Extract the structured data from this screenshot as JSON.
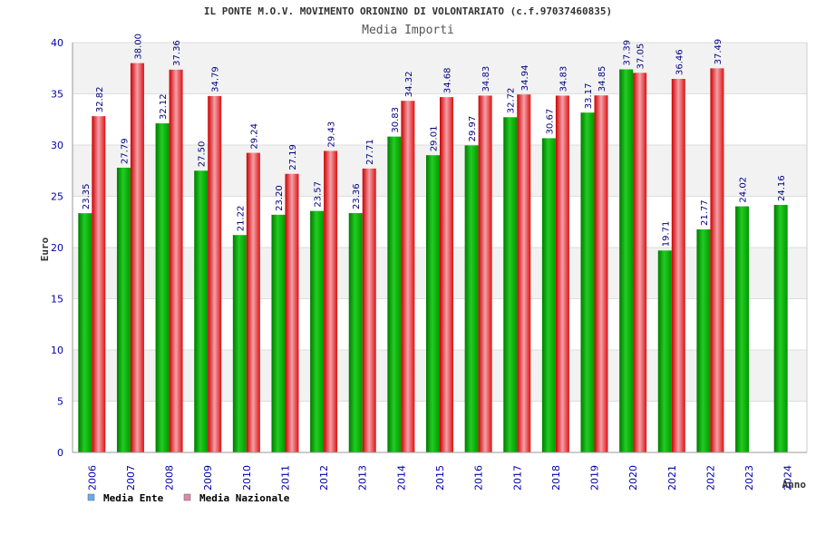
{
  "chart_data": {
    "type": "bar",
    "title": "IL PONTE M.O.V. MOVIMENTO ORIONINO DI VOLONTARIATO (c.f.97037460835)",
    "subtitle": "Media Importi",
    "xlabel": "Anno",
    "ylabel": "Euro",
    "ylim": [
      0,
      40
    ],
    "yticks": [
      0,
      5,
      10,
      15,
      20,
      25,
      30,
      35,
      40
    ],
    "grid": true,
    "legend_position": "bottom-left",
    "categories": [
      "2006",
      "2007",
      "2008",
      "2009",
      "2010",
      "2011",
      "2012",
      "2013",
      "2014",
      "2015",
      "2016",
      "2017",
      "2018",
      "2019",
      "2020",
      "2021",
      "2022",
      "2023",
      "2024"
    ],
    "series": [
      {
        "name": "Media Ente",
        "color": "#00aa00",
        "legend_color": "#66aaee",
        "values": [
          23.35,
          27.79,
          32.12,
          27.5,
          21.22,
          23.2,
          23.57,
          23.36,
          30.83,
          29.01,
          29.97,
          32.72,
          30.67,
          33.17,
          37.39,
          19.71,
          21.77,
          24.02,
          24.16
        ],
        "labels": [
          "23.35",
          "27.79",
          "32.12",
          "27.50",
          "21.22",
          "23.20",
          "23.57",
          "23.36",
          "30.83",
          "29.01",
          "29.97",
          "32.72",
          "30.67",
          "33.17",
          "37.39",
          "19.71",
          "21.77",
          "24.02",
          "24.16"
        ]
      },
      {
        "name": "Media Nazionale",
        "color": "#ee2222",
        "legend_color": "#dd88aa",
        "values": [
          32.82,
          38.0,
          37.36,
          34.79,
          29.24,
          27.19,
          29.43,
          27.71,
          34.32,
          34.68,
          34.83,
          34.94,
          34.83,
          34.85,
          37.05,
          36.46,
          37.49,
          null,
          null
        ],
        "labels": [
          "32.82",
          "38.00",
          "37.36",
          "34.79",
          "29.24",
          "27.19",
          "29.43",
          "27.71",
          "34.32",
          "34.68",
          "34.83",
          "34.94",
          "34.83",
          "34.85",
          "37.05",
          "36.46",
          "37.49",
          null,
          null
        ]
      }
    ]
  }
}
